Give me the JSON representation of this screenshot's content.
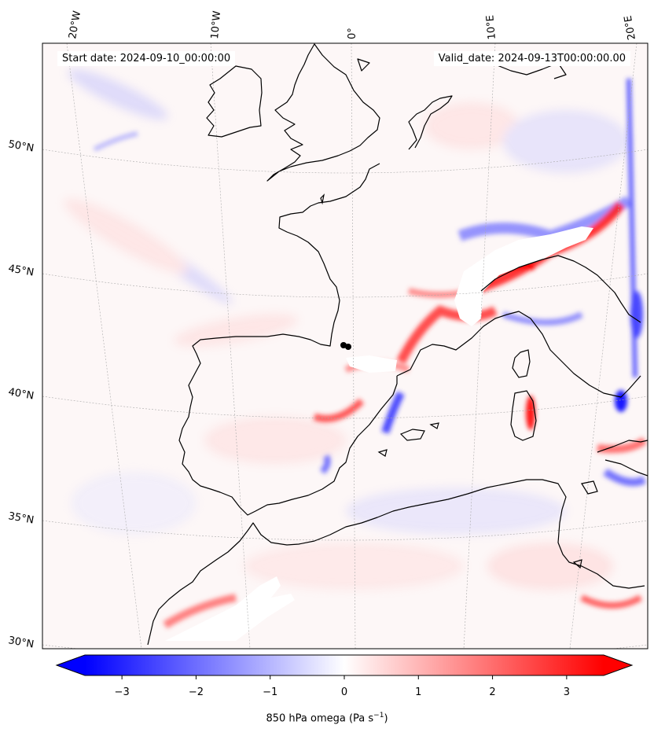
{
  "header": {
    "start_date": "Start date: 2024-09-10_00:00:00",
    "valid_date": "Valid_date: 2024-09-13T00:00:00.00"
  },
  "map": {
    "longitude_labels": [
      "20°W",
      "10°W",
      "0°",
      "10°E",
      "20°E"
    ],
    "latitude_labels": [
      "50°N",
      "45°N",
      "40°N",
      "35°N",
      "30°N"
    ]
  },
  "colorbar": {
    "label_text": "850 hPa omega (Pa s",
    "label_exponent": "−1",
    "label_close": ")",
    "ticks": [
      "−3",
      "−2",
      "−1",
      "0",
      "1",
      "2",
      "3"
    ],
    "range": [
      -3.5,
      3.5
    ],
    "colormap": "bwr",
    "color_low": "#0000ff",
    "color_mid": "#ffffff",
    "color_high": "#ff0000"
  }
}
